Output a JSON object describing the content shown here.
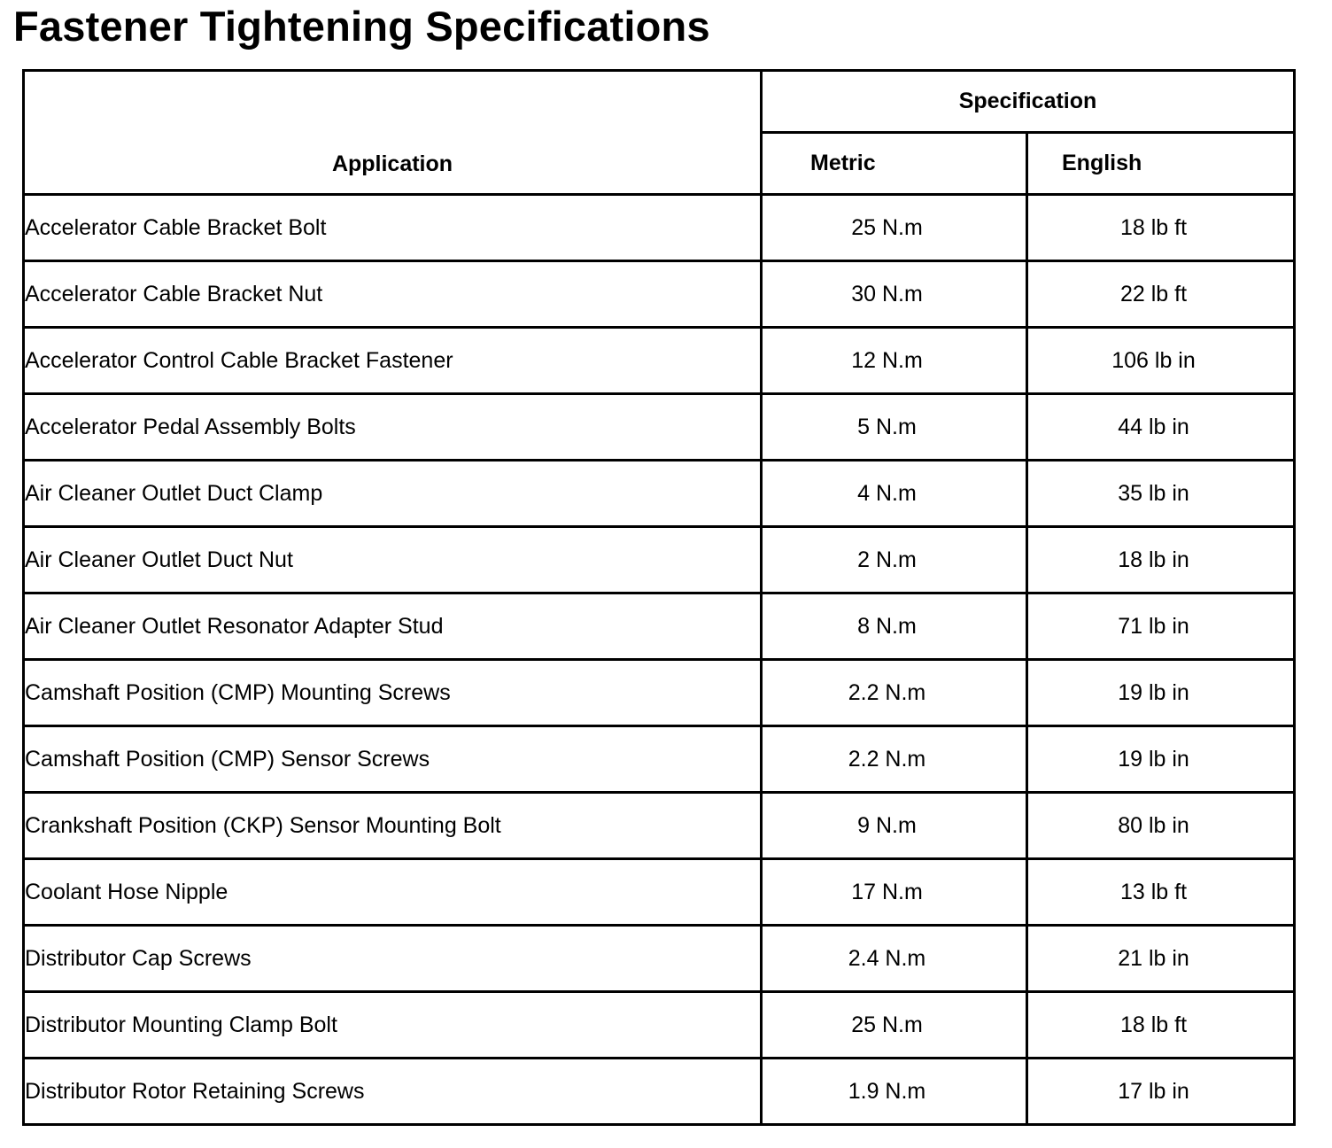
{
  "title": "Fastener Tightening Specifications",
  "table": {
    "headers": {
      "application": "Application",
      "specification": "Specification",
      "metric": "Metric",
      "english": "English"
    },
    "rows": [
      {
        "application": "Accelerator Cable Bracket Bolt",
        "metric": "25 N.m",
        "english": "18 lb ft"
      },
      {
        "application": "Accelerator Cable Bracket Nut",
        "metric": "30 N.m",
        "english": "22 lb ft"
      },
      {
        "application": "Accelerator Control Cable Bracket Fastener",
        "metric": "12 N.m",
        "english": "106 lb in"
      },
      {
        "application": "Accelerator Pedal Assembly Bolts",
        "metric": "5 N.m",
        "english": "44 lb in"
      },
      {
        "application": "Air Cleaner Outlet Duct Clamp",
        "metric": "4 N.m",
        "english": "35 lb in"
      },
      {
        "application": "Air Cleaner Outlet Duct Nut",
        "metric": "2 N.m",
        "english": "18 lb in"
      },
      {
        "application": "Air Cleaner Outlet Resonator Adapter Stud",
        "metric": "8 N.m",
        "english": "71 lb in"
      },
      {
        "application": "Camshaft Position (CMP) Mounting Screws",
        "metric": "2.2 N.m",
        "english": "19 lb in"
      },
      {
        "application": "Camshaft Position (CMP) Sensor Screws",
        "metric": "2.2 N.m",
        "english": "19 lb in"
      },
      {
        "application": "Crankshaft Position (CKP) Sensor Mounting Bolt",
        "metric": "9 N.m",
        "english": "80 lb in"
      },
      {
        "application": "Coolant Hose Nipple",
        "metric": "17 N.m",
        "english": "13 lb ft"
      },
      {
        "application": "Distributor Cap Screws",
        "metric": "2.4 N.m",
        "english": "21 lb in"
      },
      {
        "application": "Distributor Mounting Clamp Bolt",
        "metric": "25 N.m",
        "english": "18 lb ft"
      },
      {
        "application": "Distributor Rotor Retaining Screws",
        "metric": "1.9 N.m",
        "english": "17 lb in"
      }
    ]
  }
}
